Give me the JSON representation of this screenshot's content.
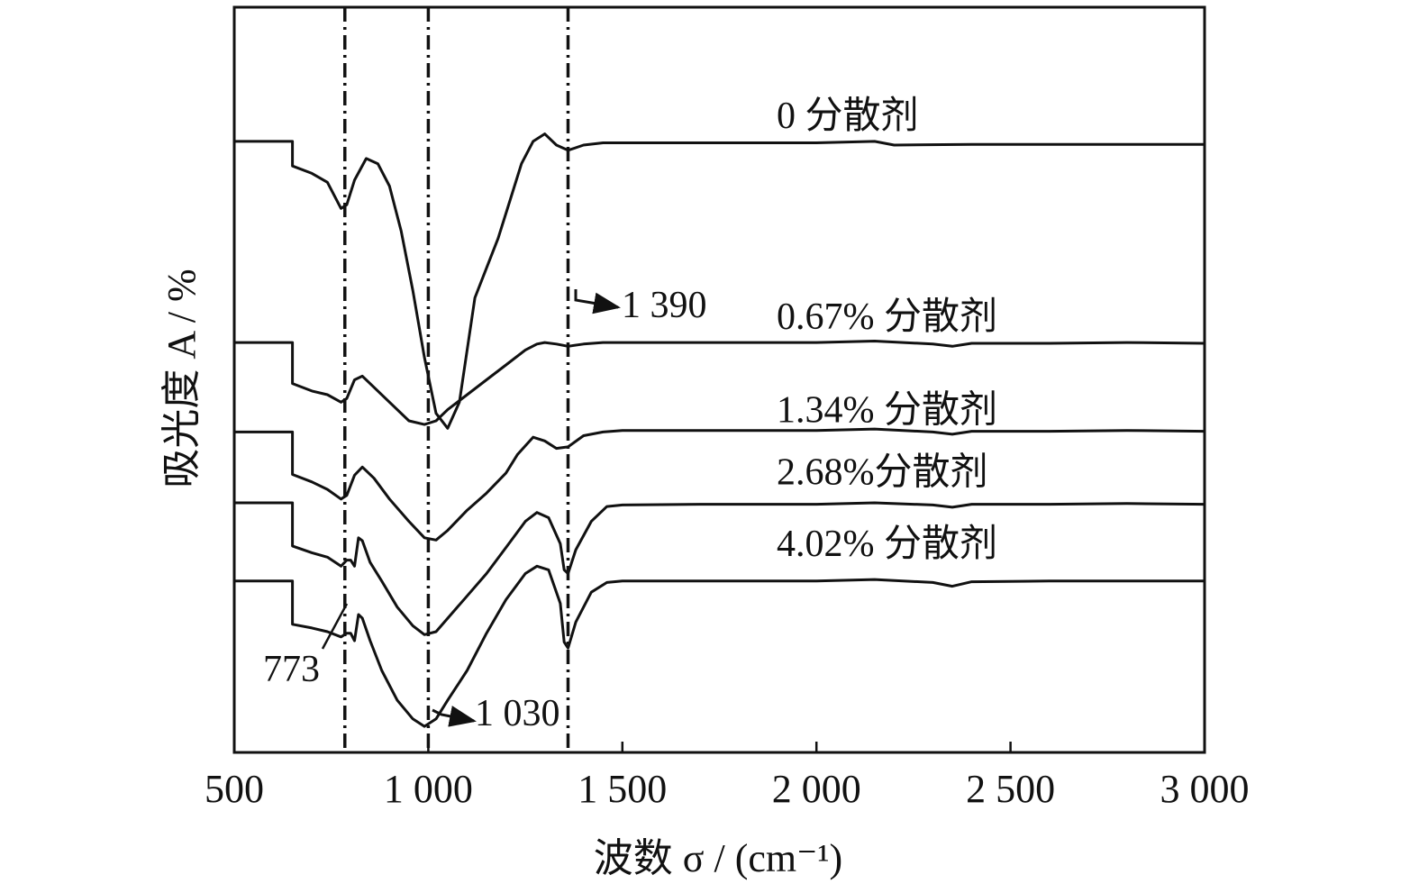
{
  "chart_data": {
    "type": "line",
    "title": "",
    "xlabel": "波数 σ / (cm⁻¹)",
    "ylabel": "吸光度 A / %",
    "xlim": [
      500,
      3000
    ],
    "xticks": [
      500,
      1000,
      1500,
      2000,
      2500,
      3000
    ],
    "xtick_labels": [
      "500",
      "1 000",
      "1 500",
      "2 000",
      "2 500",
      "3 000"
    ],
    "yticks": [],
    "grid": false,
    "legend": "inline labels on right side",
    "colors": {
      "line": "#111111",
      "axis": "#111111",
      "background": "#ffffff"
    },
    "reference_lines": [
      {
        "x": 785,
        "style": "dash-dot"
      },
      {
        "x": 1000,
        "style": "dash-dot"
      },
      {
        "x": 1360,
        "style": "dash-dot"
      }
    ],
    "annotations": [
      {
        "text": "773",
        "x": 773
      },
      {
        "text": "1 030",
        "x": 1030
      },
      {
        "text": "1 390",
        "x": 1390
      }
    ],
    "series": [
      {
        "name": "0 分散剂",
        "x": [
          500,
          650,
          650,
          700,
          740,
          775,
          790,
          810,
          840,
          870,
          900,
          930,
          960,
          990,
          1020,
          1050,
          1080,
          1100,
          1120,
          1150,
          1180,
          1210,
          1240,
          1270,
          1300,
          1330,
          1360,
          1400,
          1450,
          1500,
          1600,
          1800,
          2000,
          2150,
          2200,
          2400,
          2600,
          2800,
          3000
        ],
        "y": [
          0.82,
          0.82,
          0.787,
          0.777,
          0.765,
          0.73,
          0.735,
          0.768,
          0.797,
          0.79,
          0.76,
          0.7,
          0.62,
          0.53,
          0.455,
          0.435,
          0.47,
          0.54,
          0.61,
          0.65,
          0.69,
          0.74,
          0.79,
          0.82,
          0.83,
          0.815,
          0.808,
          0.815,
          0.818,
          0.818,
          0.818,
          0.818,
          0.818,
          0.82,
          0.815,
          0.816,
          0.816,
          0.816,
          0.816
        ]
      },
      {
        "name": "0.67% 分散剂",
        "x": [
          500,
          650,
          650,
          700,
          740,
          775,
          790,
          810,
          830,
          860,
          900,
          950,
          990,
          1020,
          1050,
          1100,
          1150,
          1200,
          1250,
          1280,
          1300,
          1330,
          1360,
          1400,
          1450,
          1500,
          1600,
          2000,
          2150,
          2300,
          2350,
          2400,
          2600,
          2800,
          3000
        ],
        "y": [
          0.55,
          0.55,
          0.495,
          0.485,
          0.48,
          0.47,
          0.475,
          0.5,
          0.505,
          0.49,
          0.47,
          0.445,
          0.44,
          0.445,
          0.46,
          0.48,
          0.5,
          0.52,
          0.54,
          0.548,
          0.55,
          0.548,
          0.545,
          0.548,
          0.55,
          0.55,
          0.55,
          0.55,
          0.552,
          0.548,
          0.545,
          0.549,
          0.549,
          0.55,
          0.549
        ]
      },
      {
        "name": "1.34% 分散剂",
        "x": [
          500,
          650,
          650,
          700,
          740,
          775,
          790,
          810,
          830,
          860,
          900,
          950,
          990,
          1020,
          1050,
          1100,
          1150,
          1200,
          1230,
          1270,
          1300,
          1330,
          1360,
          1400,
          1450,
          1500,
          1600,
          2000,
          2150,
          2300,
          2350,
          2400,
          2600,
          2800,
          3000
        ],
        "y": [
          0.43,
          0.43,
          0.373,
          0.363,
          0.353,
          0.34,
          0.345,
          0.372,
          0.383,
          0.368,
          0.34,
          0.31,
          0.288,
          0.285,
          0.298,
          0.325,
          0.348,
          0.375,
          0.4,
          0.423,
          0.418,
          0.408,
          0.41,
          0.425,
          0.43,
          0.432,
          0.432,
          0.432,
          0.434,
          0.43,
          0.427,
          0.431,
          0.431,
          0.432,
          0.431
        ]
      },
      {
        "name": "2.68%分散剂",
        "x": [
          500,
          650,
          650,
          700,
          740,
          775,
          790,
          800,
          810,
          820,
          830,
          850,
          880,
          920,
          960,
          990,
          1020,
          1050,
          1100,
          1150,
          1200,
          1250,
          1280,
          1310,
          1340,
          1350,
          1360,
          1380,
          1420,
          1460,
          1500,
          1700,
          2000,
          2150,
          2300,
          2350,
          2400,
          2600,
          2800,
          3000
        ],
        "y": [
          0.335,
          0.335,
          0.277,
          0.268,
          0.262,
          0.25,
          0.258,
          0.258,
          0.25,
          0.288,
          0.284,
          0.255,
          0.23,
          0.195,
          0.17,
          0.158,
          0.162,
          0.18,
          0.21,
          0.24,
          0.275,
          0.31,
          0.322,
          0.315,
          0.28,
          0.245,
          0.24,
          0.272,
          0.31,
          0.33,
          0.332,
          0.333,
          0.333,
          0.335,
          0.332,
          0.329,
          0.333,
          0.333,
          0.334,
          0.333
        ]
      },
      {
        "name": "4.02% 分散剂",
        "x": [
          500,
          650,
          650,
          700,
          740,
          775,
          790,
          800,
          810,
          820,
          830,
          850,
          880,
          920,
          960,
          990,
          1020,
          1050,
          1100,
          1150,
          1200,
          1250,
          1280,
          1310,
          1340,
          1350,
          1360,
          1380,
          1420,
          1460,
          1500,
          1700,
          2000,
          2150,
          2300,
          2350,
          2400,
          2600,
          2800,
          3000
        ],
        "y": [
          0.23,
          0.23,
          0.172,
          0.167,
          0.162,
          0.155,
          0.16,
          0.16,
          0.15,
          0.185,
          0.18,
          0.15,
          0.11,
          0.07,
          0.045,
          0.035,
          0.045,
          0.07,
          0.11,
          0.16,
          0.205,
          0.24,
          0.25,
          0.245,
          0.2,
          0.148,
          0.14,
          0.175,
          0.215,
          0.228,
          0.23,
          0.23,
          0.23,
          0.232,
          0.228,
          0.223,
          0.229,
          0.23,
          0.23,
          0.23
        ]
      }
    ]
  }
}
